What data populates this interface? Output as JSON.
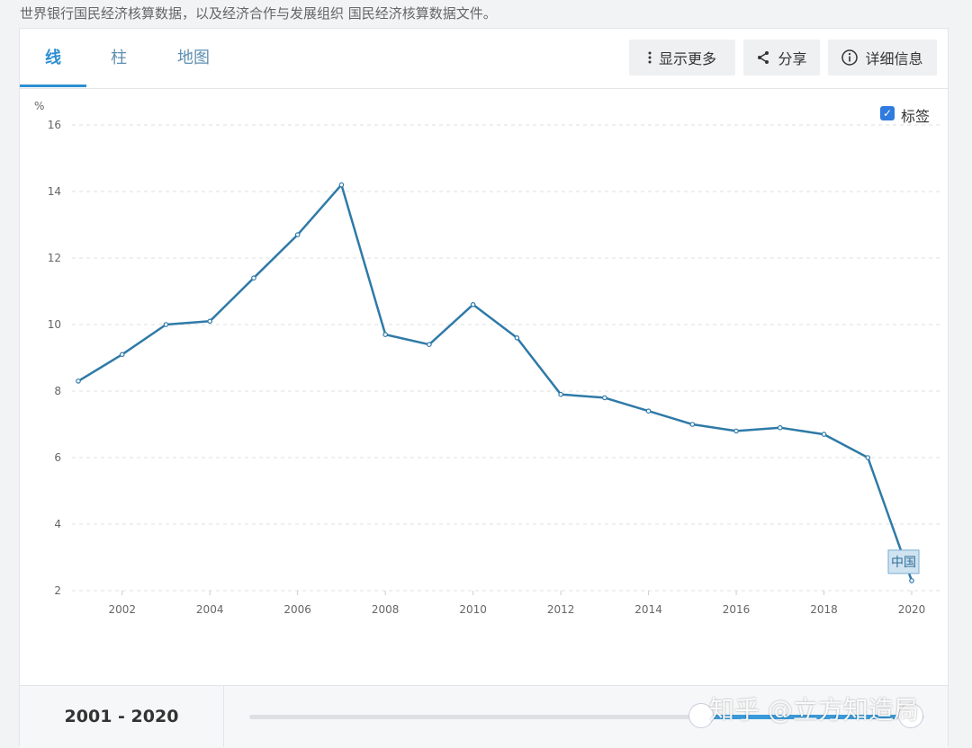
{
  "source_note": "世界银行国民经济核算数据，以及经济合作与发展组织 国民经济核算数据文件。",
  "tabs": [
    {
      "label": "线",
      "active": true
    },
    {
      "label": "柱",
      "active": false
    },
    {
      "label": "地图",
      "active": false
    }
  ],
  "toolbar": {
    "more_label": "显示更多",
    "share_label": "分享",
    "details_label": "详细信息"
  },
  "legend": {
    "checkbox_label": "标签",
    "checked": true
  },
  "range_label": "2001 - 2020",
  "watermark": "知乎 @立方知造局",
  "colors": {
    "line": "#2f7aa8",
    "accent": "#2c8fd0",
    "label_bg": "#cfe3f1"
  },
  "chart_data": {
    "type": "line",
    "ylabel": "%",
    "ylim": [
      2,
      16
    ],
    "yticks": [
      2,
      4,
      6,
      8,
      10,
      12,
      14,
      16
    ],
    "xticks": [
      2002,
      2004,
      2006,
      2008,
      2010,
      2012,
      2014,
      2016,
      2018,
      2020
    ],
    "xlim": [
      2001,
      2020
    ],
    "grid": true,
    "series": [
      {
        "name": "中国",
        "x": [
          2001,
          2002,
          2003,
          2004,
          2005,
          2006,
          2007,
          2008,
          2009,
          2010,
          2011,
          2012,
          2013,
          2014,
          2015,
          2016,
          2017,
          2018,
          2019,
          2020
        ],
        "values": [
          8.3,
          9.1,
          10.0,
          10.1,
          11.4,
          12.7,
          14.2,
          9.7,
          9.4,
          10.6,
          9.6,
          7.9,
          7.8,
          7.4,
          7.0,
          6.8,
          6.9,
          6.7,
          6.0,
          2.3
        ]
      }
    ]
  }
}
